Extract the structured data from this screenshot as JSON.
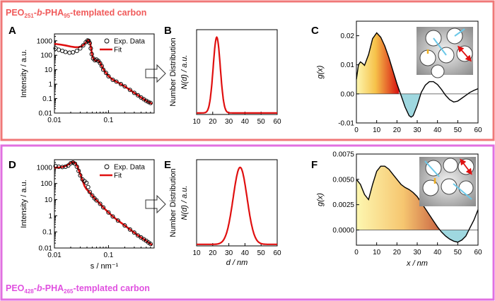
{
  "figure": {
    "top_sample_label": {
      "pre": "PEO",
      "sub1": "251",
      "mid": "-",
      "it": "b",
      "mid2": "-PHA",
      "sub2": "95",
      "post": "-templated carbon"
    },
    "bottom_sample_label": {
      "pre": "PEO",
      "sub1": "428",
      "mid": "-",
      "it": "b",
      "mid2": "-PHA",
      "sub2": "265",
      "post": "-templated carbon"
    },
    "colors": {
      "fit": "#e01010",
      "top_frame": "#f07878",
      "bottom_frame": "#e070e0",
      "fill_low": "#fdf5a8",
      "fill_high": "#d81010",
      "neg_fill": "#9fd8e0"
    }
  },
  "chart_data": [
    {
      "id": "A",
      "type": "scatter",
      "letter": "A",
      "xlabel": "",
      "ylabel": "Intensity / a.u.",
      "xscale": "log",
      "yscale": "log",
      "xlim": [
        0.01,
        0.7
      ],
      "ylim": [
        0.01,
        3000
      ],
      "xticks": [
        0.01,
        0.1
      ],
      "xtick_labels": [
        "0.01",
        "0.1"
      ],
      "yticks": [
        0.01,
        0.1,
        1,
        10,
        100,
        1000
      ],
      "ytick_labels": [
        "0.01",
        "0.1",
        "1",
        "10",
        "100",
        "1000"
      ],
      "legend": [
        "Exp. Data",
        "Fit"
      ],
      "legend_position": "top-right",
      "series": [
        {
          "name": "Exp. Data",
          "style": "open-circle",
          "x": [
            0.0105,
            0.012,
            0.014,
            0.016,
            0.019,
            0.022,
            0.026,
            0.03,
            0.034,
            0.038,
            0.041,
            0.043,
            0.045,
            0.047,
            0.049,
            0.052,
            0.056,
            0.06,
            0.065,
            0.07,
            0.075,
            0.08,
            0.09,
            0.1,
            0.12,
            0.14,
            0.17,
            0.2,
            0.25,
            0.3,
            0.35,
            0.4,
            0.45,
            0.5,
            0.55,
            0.6
          ],
          "y": [
            300,
            240,
            200,
            170,
            150,
            160,
            200,
            300,
            480,
            800,
            1050,
            1000,
            700,
            300,
            120,
            60,
            45,
            50,
            40,
            28,
            18,
            10,
            6,
            3.5,
            2,
            1.5,
            1.0,
            0.7,
            0.4,
            0.25,
            0.17,
            0.12,
            0.09,
            0.07,
            0.058,
            0.05
          ]
        },
        {
          "name": "Fit",
          "style": "line",
          "x": [
            0.01,
            0.013,
            0.016,
            0.02,
            0.024,
            0.028,
            0.032,
            0.036,
            0.039,
            0.042,
            0.044,
            0.046,
            0.048,
            0.05,
            0.053,
            0.057,
            0.061,
            0.066,
            0.07,
            0.075,
            0.08,
            0.09,
            0.1,
            0.12,
            0.14,
            0.17,
            0.2,
            0.25,
            0.3,
            0.35,
            0.4,
            0.45,
            0.5,
            0.55,
            0.6,
            0.65
          ],
          "y": [
            620,
            550,
            480,
            400,
            360,
            360,
            420,
            600,
            850,
            1100,
            1000,
            650,
            250,
            100,
            55,
            42,
            45,
            40,
            30,
            18,
            11,
            6,
            3.6,
            2,
            1.5,
            1.0,
            0.7,
            0.4,
            0.25,
            0.17,
            0.12,
            0.09,
            0.07,
            0.058,
            0.05,
            0.042
          ]
        }
      ]
    },
    {
      "id": "B",
      "type": "line",
      "letter": "B",
      "xlabel": "",
      "ylabel": "Number Distribution",
      "ylabel2": "N(d) / a.u.",
      "xlim": [
        10,
        60
      ],
      "xticks": [
        10,
        20,
        30,
        40,
        50,
        60
      ],
      "xtick_labels": [
        "10",
        "20",
        "30",
        "40",
        "50",
        "60"
      ],
      "ylim": [
        0,
        1.12
      ],
      "series": [
        {
          "name": "N(d)",
          "peak": 22.5,
          "sigma": 2.2,
          "baseline": 0.02
        }
      ]
    },
    {
      "id": "C",
      "type": "area",
      "letter": "C",
      "xlabel": "",
      "ylabel": "g(x)",
      "xlim": [
        0,
        60
      ],
      "xticks": [
        0,
        10,
        20,
        30,
        40,
        50,
        60
      ],
      "xtick_labels": [
        "0",
        "10",
        "20",
        "30",
        "40",
        "50",
        "60"
      ],
      "ylim": [
        -0.01,
        0.025
      ],
      "yticks": [
        -0.01,
        0,
        0.01,
        0.02
      ],
      "ytick_labels": [
        "-0.01",
        "0.00",
        "0.01",
        "0.02"
      ],
      "gradient_end_x": 21,
      "negative_fill_range": [
        21,
        33
      ],
      "series": [
        {
          "name": "g(x)",
          "x": [
            0,
            1,
            2,
            3,
            4,
            6,
            8,
            10,
            12,
            14,
            16,
            18,
            20,
            22,
            24,
            26,
            27,
            28,
            30,
            32,
            34,
            36,
            38,
            40,
            42,
            44,
            46,
            48,
            50,
            52,
            54,
            56,
            58,
            60
          ],
          "y": [
            0.005,
            0.01,
            0.011,
            0.0105,
            0.0098,
            0.0135,
            0.019,
            0.021,
            0.0195,
            0.0165,
            0.0125,
            0.008,
            0.0035,
            -0.0005,
            -0.0045,
            -0.0075,
            -0.008,
            -0.0075,
            -0.004,
            0.0005,
            0.003,
            0.0042,
            0.0042,
            0.0032,
            0.0015,
            -0.0005,
            -0.002,
            -0.0028,
            -0.0025,
            -0.0015,
            -0.0005,
            0.0005,
            0.0012,
            0.0018
          ]
        }
      ]
    },
    {
      "id": "D",
      "type": "scatter",
      "letter": "D",
      "xlabel": "s / nm⁻¹",
      "ylabel": "Intensity / a.u.",
      "xscale": "log",
      "yscale": "log",
      "xlim": [
        0.01,
        0.7
      ],
      "ylim": [
        0.01,
        3000
      ],
      "xticks": [
        0.01,
        0.1
      ],
      "xtick_labels": [
        "0.01",
        "0.1"
      ],
      "yticks": [
        0.01,
        0.1,
        1,
        10,
        100,
        1000
      ],
      "ytick_labels": [
        "0.01",
        "0.1",
        "1",
        "10",
        "100",
        "1000"
      ],
      "legend": [
        "Exp. Data",
        "Fit"
      ],
      "legend_position": "top-right",
      "series": [
        {
          "name": "Exp. Data",
          "style": "open-circle",
          "x": [
            0.0105,
            0.012,
            0.014,
            0.016,
            0.018,
            0.02,
            0.022,
            0.024,
            0.026,
            0.028,
            0.03,
            0.033,
            0.036,
            0.039,
            0.042,
            0.045,
            0.05,
            0.055,
            0.06,
            0.07,
            0.08,
            0.1,
            0.12,
            0.15,
            0.2,
            0.25,
            0.3,
            0.35,
            0.4,
            0.45,
            0.5,
            0.55,
            0.6
          ],
          "y": [
            1200,
            1100,
            1050,
            1100,
            1300,
            1800,
            2000,
            1700,
            1100,
            600,
            320,
            180,
            140,
            110,
            60,
            30,
            18,
            12,
            9,
            5.5,
            3.3,
            1.6,
            0.9,
            0.5,
            0.25,
            0.14,
            0.09,
            0.06,
            0.045,
            0.035,
            0.028,
            0.022,
            0.018
          ]
        },
        {
          "name": "Fit",
          "style": "line",
          "x": [
            0.01,
            0.012,
            0.014,
            0.016,
            0.018,
            0.02,
            0.022,
            0.024,
            0.026,
            0.028,
            0.03,
            0.033,
            0.036,
            0.039,
            0.042,
            0.045,
            0.05,
            0.055,
            0.06,
            0.07,
            0.08,
            0.1,
            0.12,
            0.15,
            0.2,
            0.25,
            0.3,
            0.35,
            0.4,
            0.45,
            0.5,
            0.55,
            0.6,
            0.65
          ],
          "y": [
            950,
            980,
            1050,
            1200,
            1500,
            1900,
            2150,
            1900,
            1300,
            700,
            380,
            160,
            70,
            45,
            35,
            28,
            18,
            12,
            9,
            5.5,
            3.3,
            1.6,
            0.9,
            0.5,
            0.25,
            0.14,
            0.09,
            0.06,
            0.045,
            0.035,
            0.028,
            0.022,
            0.018,
            0.015
          ]
        }
      ]
    },
    {
      "id": "E",
      "type": "line",
      "letter": "E",
      "xlabel": "d / nm",
      "ylabel": "Number Distribution",
      "ylabel2": "N(d) / a.u.",
      "xlim": [
        10,
        60
      ],
      "xticks": [
        10,
        20,
        30,
        40,
        50,
        60
      ],
      "xtick_labels": [
        "10",
        "20",
        "30",
        "40",
        "50",
        "60"
      ],
      "ylim": [
        0,
        1.12
      ],
      "series": [
        {
          "name": "N(d)",
          "peak": 37,
          "sigma": 4.3,
          "baseline": 0.02
        }
      ]
    },
    {
      "id": "F",
      "type": "area",
      "letter": "F",
      "xlabel": "x / nm",
      "ylabel": "g(x)",
      "xlim": [
        0,
        60
      ],
      "xticks": [
        0,
        10,
        20,
        30,
        40,
        50,
        60
      ],
      "xtick_labels": [
        "0",
        "10",
        "20",
        "30",
        "40",
        "50",
        "60"
      ],
      "ylim": [
        -0.0015,
        0.0075
      ],
      "yticks": [
        0,
        0.0025,
        0.005,
        0.0075
      ],
      "ytick_labels": [
        "0.0000",
        "0.0025",
        "0.0050",
        "0.0075"
      ],
      "gradient_end_x": 42,
      "negative_fill_range": [
        42,
        56
      ],
      "series": [
        {
          "name": "g(x)",
          "x": [
            0,
            2,
            4,
            6,
            8,
            10,
            12,
            14,
            16,
            18,
            20,
            22,
            24,
            26,
            28,
            30,
            32,
            34,
            36,
            38,
            40,
            42,
            44,
            46,
            48,
            50,
            52,
            54,
            56,
            58,
            60
          ],
          "y": [
            0.005,
            0.0045,
            0.0035,
            0.003,
            0.0045,
            0.0058,
            0.0063,
            0.0063,
            0.006,
            0.0055,
            0.005,
            0.0045,
            0.0042,
            0.004,
            0.0037,
            0.0033,
            0.0027,
            0.0021,
            0.0015,
            0.0009,
            0.0003,
            -0.0002,
            -0.0006,
            -0.0009,
            -0.0011,
            -0.0012,
            -0.001,
            -0.0006,
            0.0002,
            0.001,
            0.002
          ]
        }
      ]
    }
  ]
}
